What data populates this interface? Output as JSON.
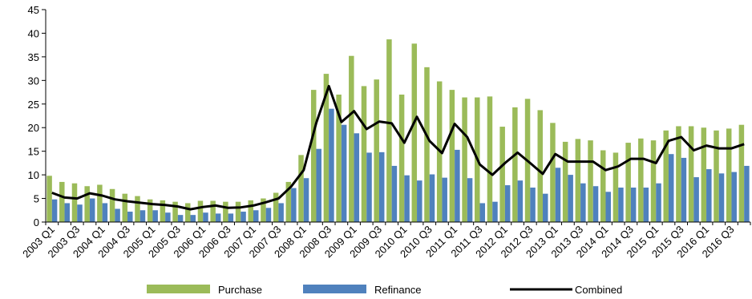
{
  "chart_data": {
    "type": "bar",
    "categories": [
      "2003 Q1",
      null,
      "2003 Q3",
      null,
      "2004 Q1",
      null,
      "2004 Q3",
      null,
      "2005 Q1",
      null,
      "2005 Q3",
      null,
      "2006 Q1",
      null,
      "2006 Q3",
      null,
      "2007 Q1",
      null,
      "2007 Q3",
      null,
      "2008 Q1",
      null,
      "2008 Q3",
      null,
      "2009 Q1",
      null,
      "2009 Q3",
      null,
      "2010 Q1",
      null,
      "2010 Q3",
      null,
      "2011 Q1",
      null,
      "2011 Q3",
      null,
      "2012 Q1",
      null,
      "2012 Q3",
      null,
      "2013 Q1",
      null,
      "2013 Q3",
      null,
      "2014 Q1",
      null,
      "2014 Q3",
      null,
      "2015 Q1",
      null,
      "2015 Q3",
      null,
      "2016 Q1",
      null,
      "2016 Q3",
      null
    ],
    "series": [
      {
        "name": "Purchase",
        "type": "bar",
        "color": "#9bbb59",
        "values": [
          9.8,
          8.5,
          8.2,
          7.6,
          7.9,
          7.0,
          6.0,
          5.5,
          4.8,
          4.6,
          4.3,
          4.0,
          4.5,
          4.5,
          4.3,
          4.3,
          4.6,
          5.0,
          6.2,
          8.5,
          14.2,
          28.0,
          31.4,
          27.0,
          35.2,
          28.8,
          30.2,
          38.7,
          27.0,
          37.8,
          32.8,
          29.8,
          28.0,
          26.4,
          26.4,
          26.6,
          20.2,
          24.3,
          26.1,
          23.7,
          21.0,
          17.0,
          17.6,
          17.3,
          15.2,
          14.7,
          16.8,
          17.7,
          17.3,
          19.4,
          20.3,
          20.3,
          20.0,
          19.4,
          19.8,
          20.6
        ]
      },
      {
        "name": "Refinance",
        "type": "bar",
        "color": "#4f81bd",
        "values": [
          4.8,
          4.0,
          3.7,
          5.0,
          4.0,
          2.8,
          2.2,
          2.5,
          2.5,
          2.0,
          1.5,
          1.5,
          2.0,
          1.8,
          1.8,
          2.2,
          2.5,
          3.0,
          4.0,
          7.2,
          9.3,
          15.5,
          24.0,
          20.6,
          18.8,
          14.7,
          14.8,
          11.9,
          9.9,
          8.8,
          10.1,
          9.4,
          15.3,
          9.3,
          4.0,
          4.3,
          7.8,
          8.8,
          7.3,
          6.0,
          11.5,
          10.0,
          8.2,
          7.6,
          6.4,
          7.3,
          7.3,
          7.3,
          8.2,
          14.4,
          13.6,
          9.5,
          11.2,
          10.3,
          10.6,
          11.9
        ]
      },
      {
        "name": "Combined",
        "type": "line",
        "color": "#000000",
        "values": [
          6.2,
          5.2,
          5.0,
          6.1,
          5.6,
          4.8,
          4.4,
          4.1,
          3.8,
          3.6,
          3.3,
          2.7,
          3.2,
          3.5,
          3.0,
          3.1,
          3.5,
          4.2,
          5.0,
          7.5,
          11.0,
          21.0,
          28.8,
          21.2,
          23.5,
          19.7,
          21.3,
          20.9,
          16.8,
          22.3,
          17.2,
          14.6,
          20.8,
          18.0,
          12.2,
          10.0,
          12.5,
          14.7,
          12.5,
          10.2,
          14.4,
          12.8,
          12.8,
          12.8,
          11.0,
          11.8,
          13.4,
          13.4,
          12.5,
          17.2,
          18.0,
          15.2,
          16.2,
          15.6,
          15.6,
          16.5
        ]
      }
    ],
    "ylim": [
      0,
      45
    ],
    "yticks": [
      0,
      5,
      10,
      15,
      20,
      25,
      30,
      35,
      40,
      45
    ],
    "grid": false,
    "legend": "bottom"
  }
}
